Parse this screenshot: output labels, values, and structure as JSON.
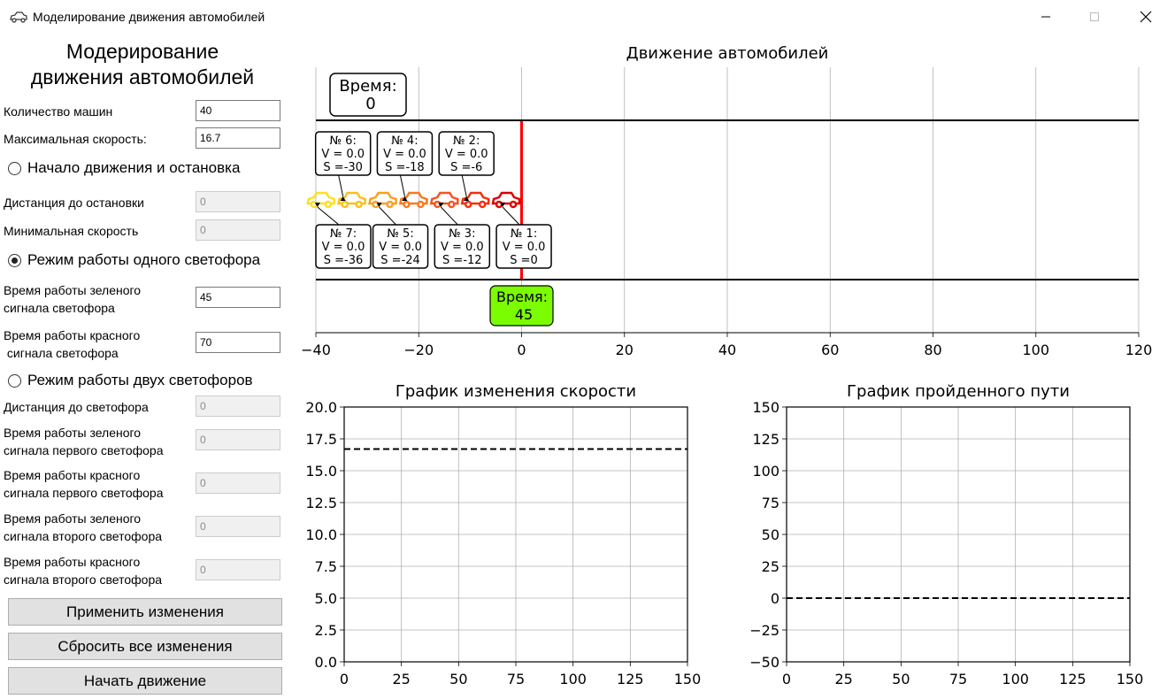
{
  "window": {
    "title": "Моделирование движения автомобилей",
    "app_icon": "car-icon"
  },
  "panel": {
    "title_line1": "Модерирование",
    "title_line2": "движения автомобилей",
    "car_count_label": "Количество машин",
    "car_count_value": "40",
    "max_speed_label": "Максимальная скорость:",
    "max_speed_value": "16.7",
    "mode_start_stop": "Начало движения и остановка",
    "stop_distance_label": "Дистанция до остановки",
    "stop_distance_value": "0",
    "min_speed_label": "Минимальная скорость",
    "min_speed_value": "0",
    "mode_one_light": "Режим работы одного светофора",
    "green_time_label_1": "Время работы зеленого",
    "green_time_label_2": "сигнала светофора",
    "green_time_value": "45",
    "red_time_label_1": "Время работы красного",
    "red_time_label_2": " сигнала светофора",
    "red_time_value": "70",
    "mode_two_lights": "Режим работы двух светофоров",
    "light_distance_label": "Дистанция до светофора",
    "light_distance_value": "0",
    "green1_label_1": "Время работы зеленого",
    "green1_label_2": "сигнала первого светофора",
    "green1_value": "0",
    "red1_label_1": "Время работы красного",
    "red1_label_2": "сигнала первого светофора",
    "red1_value": "0",
    "green2_label_1": "Время работы зеленого",
    "green2_label_2": "сигнала второго светофора",
    "green2_value": "0",
    "red2_label_1": "Время работы красного",
    "red2_label_2": "сигнала второго светофора",
    "red2_value": "0",
    "apply_button": "Применить изменения",
    "reset_button": "Сбросить все изменения",
    "start_button": "Начать движение",
    "selected_mode": "one_light"
  },
  "chart_data": [
    {
      "type": "scatter",
      "title": "Движение автомобилей",
      "xlim": [
        -40,
        120
      ],
      "xticks": [
        "−40",
        "−20",
        "0",
        "20",
        "40",
        "60",
        "80",
        "100",
        "120"
      ],
      "xtick_values": [
        -40,
        -20,
        0,
        20,
        40,
        60,
        80,
        100,
        120
      ],
      "grid": "vertical",
      "time_box_label": "Время:",
      "time_value": "0",
      "light_time_label": "Время:",
      "light_time_value": "45",
      "light_color": "#7cfc00",
      "stop_line_x": 0,
      "stop_line_color": "#ff0000",
      "cars": [
        {
          "label": "№ 1:",
          "v": "V = 0.0",
          "s": "S =0",
          "x": -3,
          "color": "#e00000",
          "label_pos": "below"
        },
        {
          "label": "№ 2:",
          "v": "V = 0.0",
          "s": "S =-6",
          "x": -9,
          "color": "#f03010",
          "label_pos": "above"
        },
        {
          "label": "№ 3:",
          "v": "V = 0.0",
          "s": "S =-12",
          "x": -15,
          "color": "#f55520",
          "label_pos": "below"
        },
        {
          "label": "№ 4:",
          "v": "V = 0.0",
          "s": "S =-18",
          "x": -21,
          "color": "#f77a25",
          "label_pos": "above"
        },
        {
          "label": "№ 5:",
          "v": "V = 0.0",
          "s": "S =-24",
          "x": -27,
          "color": "#f9a020",
          "label_pos": "below"
        },
        {
          "label": "№ 6:",
          "v": "V = 0.0",
          "s": "S =-30",
          "x": -33,
          "color": "#fbc01a",
          "label_pos": "above"
        },
        {
          "label": "№ 7:",
          "v": "V = 0.0",
          "s": "S =-36",
          "x": -39,
          "color": "#fde020",
          "label_pos": "below"
        }
      ]
    },
    {
      "type": "line",
      "title": "График изменения скорости",
      "xlim": [
        0,
        150
      ],
      "ylim": [
        0,
        20
      ],
      "xticks": [
        "0",
        "25",
        "50",
        "75",
        "100",
        "125",
        "150"
      ],
      "xtick_values": [
        0,
        25,
        50,
        75,
        100,
        125,
        150
      ],
      "yticks": [
        "0.0",
        "2.5",
        "5.0",
        "7.5",
        "10.0",
        "12.5",
        "15.0",
        "17.5",
        "20.0"
      ],
      "ytick_values": [
        0,
        2.5,
        5,
        7.5,
        10,
        12.5,
        15,
        17.5,
        20
      ],
      "reference_line": 16.7,
      "grid": true
    },
    {
      "type": "line",
      "title": "График пройденного пути",
      "xlim": [
        0,
        150
      ],
      "ylim": [
        -50,
        150
      ],
      "xticks": [
        "0",
        "25",
        "50",
        "75",
        "100",
        "125",
        "150"
      ],
      "xtick_values": [
        0,
        25,
        50,
        75,
        100,
        125,
        150
      ],
      "yticks": [
        "−50",
        "−25",
        "0",
        "25",
        "50",
        "75",
        "100",
        "125",
        "150"
      ],
      "ytick_values": [
        -50,
        -25,
        0,
        25,
        50,
        75,
        100,
        125,
        150
      ],
      "reference_line": 0,
      "grid": true
    }
  ]
}
